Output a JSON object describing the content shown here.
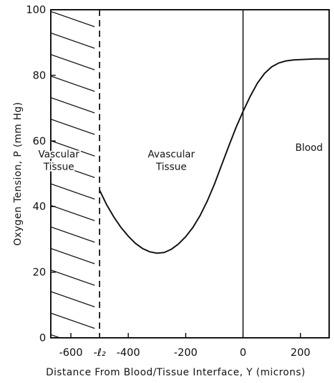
{
  "chart_data": {
    "type": "line",
    "title": "",
    "xlabel": "Distance  From  Blood/Tissue  Interface, Y   (microns)",
    "ylabel": "Oxygen   Tension,  P   (mm Hg)",
    "xlim": [
      -670,
      300
    ],
    "ylim": [
      0,
      100
    ],
    "x_ticks": [
      {
        "value": -600,
        "label": "-600"
      },
      {
        "value": -400,
        "label": "-400"
      },
      {
        "value": -200,
        "label": "-200"
      },
      {
        "value": 0,
        "label": "0"
      },
      {
        "value": 200,
        "label": "200"
      }
    ],
    "x_special_tick": {
      "value": -500,
      "label": "-ℓ₂"
    },
    "y_ticks": [
      {
        "value": 0,
        "label": "0"
      },
      {
        "value": 20,
        "label": "20"
      },
      {
        "value": 40,
        "label": "40"
      },
      {
        "value": 60,
        "label": "60"
      },
      {
        "value": 80,
        "label": "80"
      },
      {
        "value": 100,
        "label": "100"
      }
    ],
    "grid": false,
    "regions": [
      {
        "label_lines": [
          "Vascular",
          "Tissue"
        ],
        "x_center": -640,
        "y": 55,
        "hatched": true,
        "x_range": [
          -670,
          -500
        ]
      },
      {
        "label_lines": [
          "Avascular",
          "Tissue"
        ],
        "x_center": -250,
        "y": 55,
        "hatched": false
      },
      {
        "label_lines": [
          "Blood"
        ],
        "x_center": 230,
        "y": 57,
        "hatched": false
      }
    ],
    "boundaries": [
      {
        "x": -500,
        "style": "dashed"
      },
      {
        "x": 0,
        "style": "solid"
      }
    ],
    "series": [
      {
        "x": [
          -500,
          -475,
          -450,
          -425,
          -400,
          -375,
          -350,
          -325,
          -300,
          -275,
          -250,
          -225,
          -200,
          -175,
          -150,
          -125,
          -100,
          -75,
          -50,
          -25,
          0,
          25,
          50,
          75,
          100,
          125,
          150,
          175,
          200,
          225,
          250,
          275,
          300
        ],
        "values": [
          45,
          40.5,
          36.8,
          33.6,
          31.0,
          28.8,
          27.2,
          26.2,
          25.8,
          26.0,
          27.0,
          28.6,
          30.8,
          33.6,
          37.2,
          41.6,
          46.8,
          52.6,
          58.4,
          64.0,
          69,
          73.6,
          77.6,
          80.6,
          82.6,
          83.8,
          84.4,
          84.7,
          84.8,
          84.9,
          85.0,
          85.0,
          85.0
        ]
      }
    ]
  }
}
